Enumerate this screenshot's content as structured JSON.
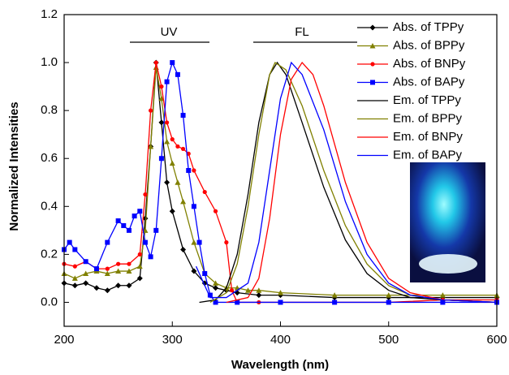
{
  "chart_data": {
    "type": "line",
    "x_label": "Wavelength (nm)",
    "y_label": "Normalized Intensities",
    "xlim": [
      200,
      600
    ],
    "ylim": [
      -0.1,
      1.2
    ],
    "xticks": [
      200,
      300,
      400,
      500,
      600
    ],
    "yticks": [
      {
        "value": 0,
        "label": "0.0"
      },
      {
        "value": 0.2,
        "label": "0.2"
      },
      {
        "value": 0.4,
        "label": "0.4"
      },
      {
        "value": 0.6,
        "label": "0.6"
      },
      {
        "value": 0.8,
        "label": "0.8"
      },
      {
        "value": 1,
        "label": "1.0"
      },
      {
        "value": 1.2,
        "label": "1.2"
      }
    ],
    "annotations": [
      "UV",
      "FL"
    ],
    "series": [
      {
        "name": "Abs. of TPPy",
        "color": "#000000",
        "marker": "diamond",
        "x": [
          200,
          210,
          220,
          230,
          240,
          250,
          260,
          270,
          275,
          280,
          285,
          290,
          295,
          300,
          310,
          320,
          330,
          340,
          350,
          360,
          380,
          400,
          450,
          500,
          550,
          600
        ],
        "values": [
          0.08,
          0.07,
          0.08,
          0.06,
          0.05,
          0.07,
          0.07,
          0.1,
          0.35,
          0.65,
          1.0,
          0.75,
          0.5,
          0.38,
          0.22,
          0.13,
          0.08,
          0.06,
          0.05,
          0.04,
          0.03,
          0.03,
          0.02,
          0.02,
          0.02,
          0.02
        ]
      },
      {
        "name": "Abs. of BPPy",
        "color": "#808000",
        "marker": "triangle",
        "x": [
          200,
          210,
          220,
          230,
          240,
          250,
          260,
          270,
          275,
          280,
          285,
          290,
          295,
          300,
          305,
          310,
          320,
          330,
          340,
          350,
          360,
          370,
          380,
          400,
          450,
          500,
          550,
          600
        ],
        "values": [
          0.12,
          0.1,
          0.12,
          0.13,
          0.12,
          0.13,
          0.13,
          0.15,
          0.3,
          0.65,
          0.98,
          0.85,
          0.67,
          0.58,
          0.5,
          0.42,
          0.25,
          0.12,
          0.08,
          0.06,
          0.06,
          0.05,
          0.05,
          0.04,
          0.03,
          0.03,
          0.03,
          0.03
        ]
      },
      {
        "name": "Abs. of BNPy",
        "color": "#ff0000",
        "marker": "circle",
        "x": [
          200,
          210,
          220,
          230,
          240,
          250,
          260,
          270,
          275,
          280,
          285,
          290,
          295,
          300,
          305,
          310,
          315,
          320,
          330,
          340,
          350,
          355,
          360,
          380,
          400,
          450,
          500,
          550,
          600
        ],
        "values": [
          0.16,
          0.15,
          0.17,
          0.14,
          0.14,
          0.16,
          0.16,
          0.2,
          0.45,
          0.8,
          1.0,
          0.9,
          0.75,
          0.68,
          0.65,
          0.64,
          0.62,
          0.55,
          0.46,
          0.38,
          0.25,
          0.05,
          0.0,
          0.0,
          0.0,
          0.0,
          0.0,
          0.01,
          0.01
        ]
      },
      {
        "name": "Abs. of BAPy",
        "color": "#0000ff",
        "marker": "square",
        "x": [
          200,
          205,
          210,
          220,
          230,
          240,
          250,
          255,
          260,
          265,
          270,
          275,
          280,
          285,
          290,
          295,
          300,
          305,
          310,
          315,
          320,
          325,
          330,
          335,
          340,
          360,
          400,
          450,
          500,
          550,
          600
        ],
        "values": [
          0.22,
          0.25,
          0.22,
          0.17,
          0.14,
          0.25,
          0.34,
          0.32,
          0.3,
          0.36,
          0.38,
          0.25,
          0.19,
          0.3,
          0.6,
          0.92,
          1.0,
          0.95,
          0.78,
          0.55,
          0.4,
          0.25,
          0.12,
          0.03,
          0.0,
          0.0,
          0.0,
          0.0,
          0.0,
          0.0,
          0.0
        ]
      },
      {
        "name": "Em. of TPPy",
        "color": "#000000",
        "x": [
          325,
          340,
          350,
          360,
          370,
          380,
          390,
          397,
          405,
          420,
          440,
          460,
          480,
          500,
          520,
          550,
          600
        ],
        "values": [
          0.0,
          0.01,
          0.06,
          0.2,
          0.45,
          0.75,
          0.95,
          1.0,
          0.95,
          0.75,
          0.48,
          0.26,
          0.12,
          0.05,
          0.02,
          0.01,
          0.0
        ]
      },
      {
        "name": "Em. of BPPy",
        "color": "#808000",
        "x": [
          335,
          350,
          360,
          370,
          380,
          390,
          395,
          405,
          420,
          440,
          460,
          480,
          500,
          520,
          550,
          600
        ],
        "values": [
          0.0,
          0.04,
          0.16,
          0.4,
          0.7,
          0.95,
          1.0,
          0.97,
          0.82,
          0.55,
          0.32,
          0.16,
          0.07,
          0.03,
          0.01,
          0.0
        ]
      },
      {
        "name": "Em. of BNPy",
        "color": "#ff0000",
        "x": [
          350,
          370,
          380,
          390,
          400,
          410,
          420,
          430,
          440,
          460,
          480,
          500,
          520,
          550,
          600
        ],
        "values": [
          0.0,
          0.02,
          0.1,
          0.35,
          0.7,
          0.93,
          1.0,
          0.95,
          0.82,
          0.5,
          0.25,
          0.1,
          0.04,
          0.01,
          0.0
        ]
      },
      {
        "name": "Em. of BAPy",
        "color": "#0000ff",
        "x": [
          322,
          335,
          350,
          370,
          380,
          390,
          400,
          410,
          420,
          440,
          460,
          480,
          500,
          520,
          550,
          600
        ],
        "values": [
          0.15,
          0.02,
          0.02,
          0.08,
          0.25,
          0.55,
          0.85,
          1.0,
          0.95,
          0.72,
          0.42,
          0.2,
          0.08,
          0.03,
          0.01,
          0.0
        ]
      }
    ]
  }
}
